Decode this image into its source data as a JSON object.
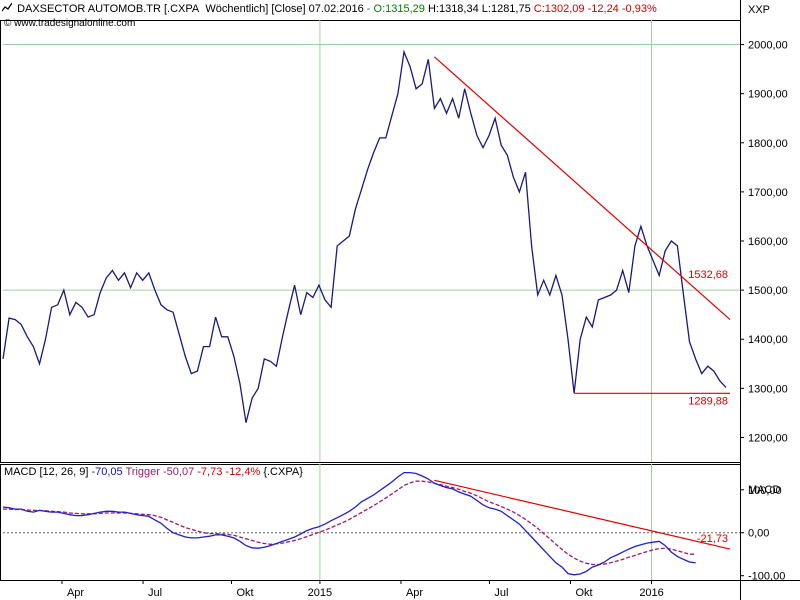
{
  "header": {
    "instrument": "DAXSECTOR AUTOMOB.TR [.CXPA",
    "period": "Wöchentlich] [Close]",
    "date": "07.02.2016",
    "open": "- O:1315,29",
    "high": "H:1318,34",
    "low": "L:1281,75",
    "close": "C:1302,09",
    "change": "-12,24",
    "change_pct": "-0,93%",
    "source": "www.tradesignalonline.com",
    "symbol": "XXP"
  },
  "macd_header": {
    "label": "MACD [12, 26, 9]",
    "value": "-70,05",
    "trigger_label": "Trigger",
    "trigger_value": "-50,07",
    "diff": "-7,73",
    "diff_pct": "-12,4%",
    "symbol": "{.CXPA}",
    "axis_title": "MACD"
  },
  "colors": {
    "price": "#1a1a7a",
    "macd": "#2020d0",
    "trigger": "#a01a6a",
    "trendline": "#e00000",
    "grid": "#9fd09f",
    "zero": "#606060"
  },
  "chart_data": [
    {
      "type": "line",
      "title": "DAXSECTOR AUTOMOB.TR",
      "ylim": [
        1150,
        2050
      ],
      "y_ticks": [
        "2000,00",
        "1900,00",
        "1800,00",
        "1700,00",
        "1600,00",
        "1500,00",
        "1400,00",
        "1300,00",
        "1200,00"
      ],
      "y_tick_values": [
        2000,
        1900,
        1800,
        1700,
        1600,
        1500,
        1400,
        1300,
        1200
      ],
      "x_ticks": [
        {
          "label": "Apr",
          "t": 0.08
        },
        {
          "label": "Jul",
          "t": 0.19
        },
        {
          "label": "Okt",
          "t": 0.31
        },
        {
          "label": "2015",
          "t": 0.43,
          "gridline": true
        },
        {
          "label": "Apr",
          "t": 0.54
        },
        {
          "label": "Jul",
          "t": 0.66
        },
        {
          "label": "Okt",
          "t": 0.77
        },
        {
          "label": "2016",
          "t": 0.88,
          "gridline": true
        }
      ],
      "series": [
        {
          "name": "Close",
          "values": [
            1360,
            1443,
            1440,
            1430,
            1405,
            1385,
            1350,
            1400,
            1465,
            1470,
            1500,
            1450,
            1475,
            1465,
            1445,
            1450,
            1495,
            1525,
            1540,
            1520,
            1535,
            1505,
            1535,
            1520,
            1535,
            1500,
            1470,
            1460,
            1455,
            1410,
            1365,
            1330,
            1335,
            1385,
            1385,
            1445,
            1405,
            1405,
            1365,
            1310,
            1230,
            1280,
            1300,
            1360,
            1355,
            1345,
            1405,
            1460,
            1510,
            1450,
            1495,
            1485,
            1510,
            1480,
            1465,
            1590,
            1600,
            1610,
            1665,
            1705,
            1745,
            1780,
            1810,
            1810,
            1855,
            1900,
            1985,
            1955,
            1910,
            1920,
            1970,
            1870,
            1890,
            1860,
            1890,
            1850,
            1910,
            1860,
            1815,
            1790,
            1815,
            1850,
            1795,
            1775,
            1730,
            1700,
            1740,
            1590,
            1490,
            1520,
            1490,
            1530,
            1490,
            1400,
            1290,
            1400,
            1445,
            1425,
            1480,
            1485,
            1490,
            1500,
            1540,
            1495,
            1590,
            1630,
            1590,
            1560,
            1530,
            1580,
            1600,
            1590,
            1490,
            1395,
            1360,
            1330,
            1345,
            1335,
            1315,
            1302
          ]
        }
      ],
      "annotations": [
        {
          "label": "1532,68",
          "kind": "trendline",
          "from": {
            "i": 71,
            "y": 1975
          },
          "to": {
            "i": 130,
            "y": 1440
          },
          "label_y": 1532.68
        },
        {
          "label": "1289,88",
          "kind": "horizontal",
          "from": {
            "i": 94,
            "y": 1289.88
          },
          "to": {
            "i": 130,
            "y": 1289.88
          },
          "label_y": 1275
        }
      ]
    },
    {
      "type": "line",
      "title": "MACD [12, 26, 9]",
      "ylim": [
        -110,
        160
      ],
      "y_ticks": [
        "100,00",
        "0,00",
        "-100,00"
      ],
      "y_tick_values": [
        100,
        0,
        -100
      ],
      "zero_line": true,
      "series": [
        {
          "name": "MACD",
          "values": [
            60,
            58,
            55,
            55,
            50,
            48,
            52,
            50,
            48,
            48,
            45,
            42,
            40,
            40,
            42,
            45,
            48,
            50,
            50,
            48,
            48,
            45,
            42,
            40,
            38,
            30,
            22,
            10,
            0,
            -5,
            -10,
            -12,
            -12,
            -10,
            -8,
            -5,
            -5,
            -8,
            -12,
            -20,
            -30,
            -35,
            -36,
            -34,
            -30,
            -25,
            -20,
            -15,
            -10,
            -3,
            5,
            10,
            14,
            20,
            28,
            35,
            42,
            50,
            60,
            72,
            80,
            88,
            98,
            108,
            118,
            130,
            140,
            140,
            138,
            132,
            125,
            115,
            110,
            105,
            102,
            95,
            90,
            85,
            75,
            65,
            58,
            55,
            50,
            40,
            30,
            20,
            5,
            -10,
            -25,
            -40,
            -55,
            -70,
            -80,
            -95,
            -98,
            -96,
            -90,
            -80,
            -75,
            -68,
            -58,
            -52,
            -45,
            -38,
            -32,
            -28,
            -24,
            -22,
            -20,
            -30,
            -45,
            -55,
            -62,
            -68,
            -70
          ]
        },
        {
          "name": "Trigger",
          "values": [
            55,
            55,
            54,
            54,
            53,
            52,
            52,
            51,
            50,
            49,
            48,
            46,
            45,
            44,
            44,
            44,
            45,
            46,
            46,
            46,
            46,
            45,
            44,
            43,
            42,
            40,
            36,
            30,
            24,
            18,
            12,
            8,
            4,
            0,
            -2,
            -2,
            -3,
            -4,
            -6,
            -10,
            -14,
            -18,
            -22,
            -25,
            -27,
            -26,
            -24,
            -21,
            -18,
            -14,
            -9,
            -4,
            1,
            6,
            12,
            18,
            24,
            31,
            39,
            47,
            55,
            63,
            72,
            81,
            90,
            100,
            110,
            116,
            120,
            120,
            118,
            115,
            112,
            108,
            105,
            101,
            96,
            92,
            86,
            79,
            72,
            67,
            61,
            55,
            48,
            40,
            31,
            21,
            10,
            -2,
            -14,
            -27,
            -39,
            -50,
            -59,
            -66,
            -71,
            -74,
            -74,
            -73,
            -70,
            -66,
            -62,
            -57,
            -53,
            -48,
            -44,
            -40,
            -37,
            -36,
            -38,
            -42,
            -46,
            -50,
            -50
          ]
        }
      ],
      "annotations": [
        {
          "label": "-21,73",
          "kind": "trendline",
          "from": {
            "i": 71,
            "y": 122
          },
          "to": {
            "i": 130,
            "y": -38
          },
          "label_y": -12
        }
      ]
    }
  ]
}
